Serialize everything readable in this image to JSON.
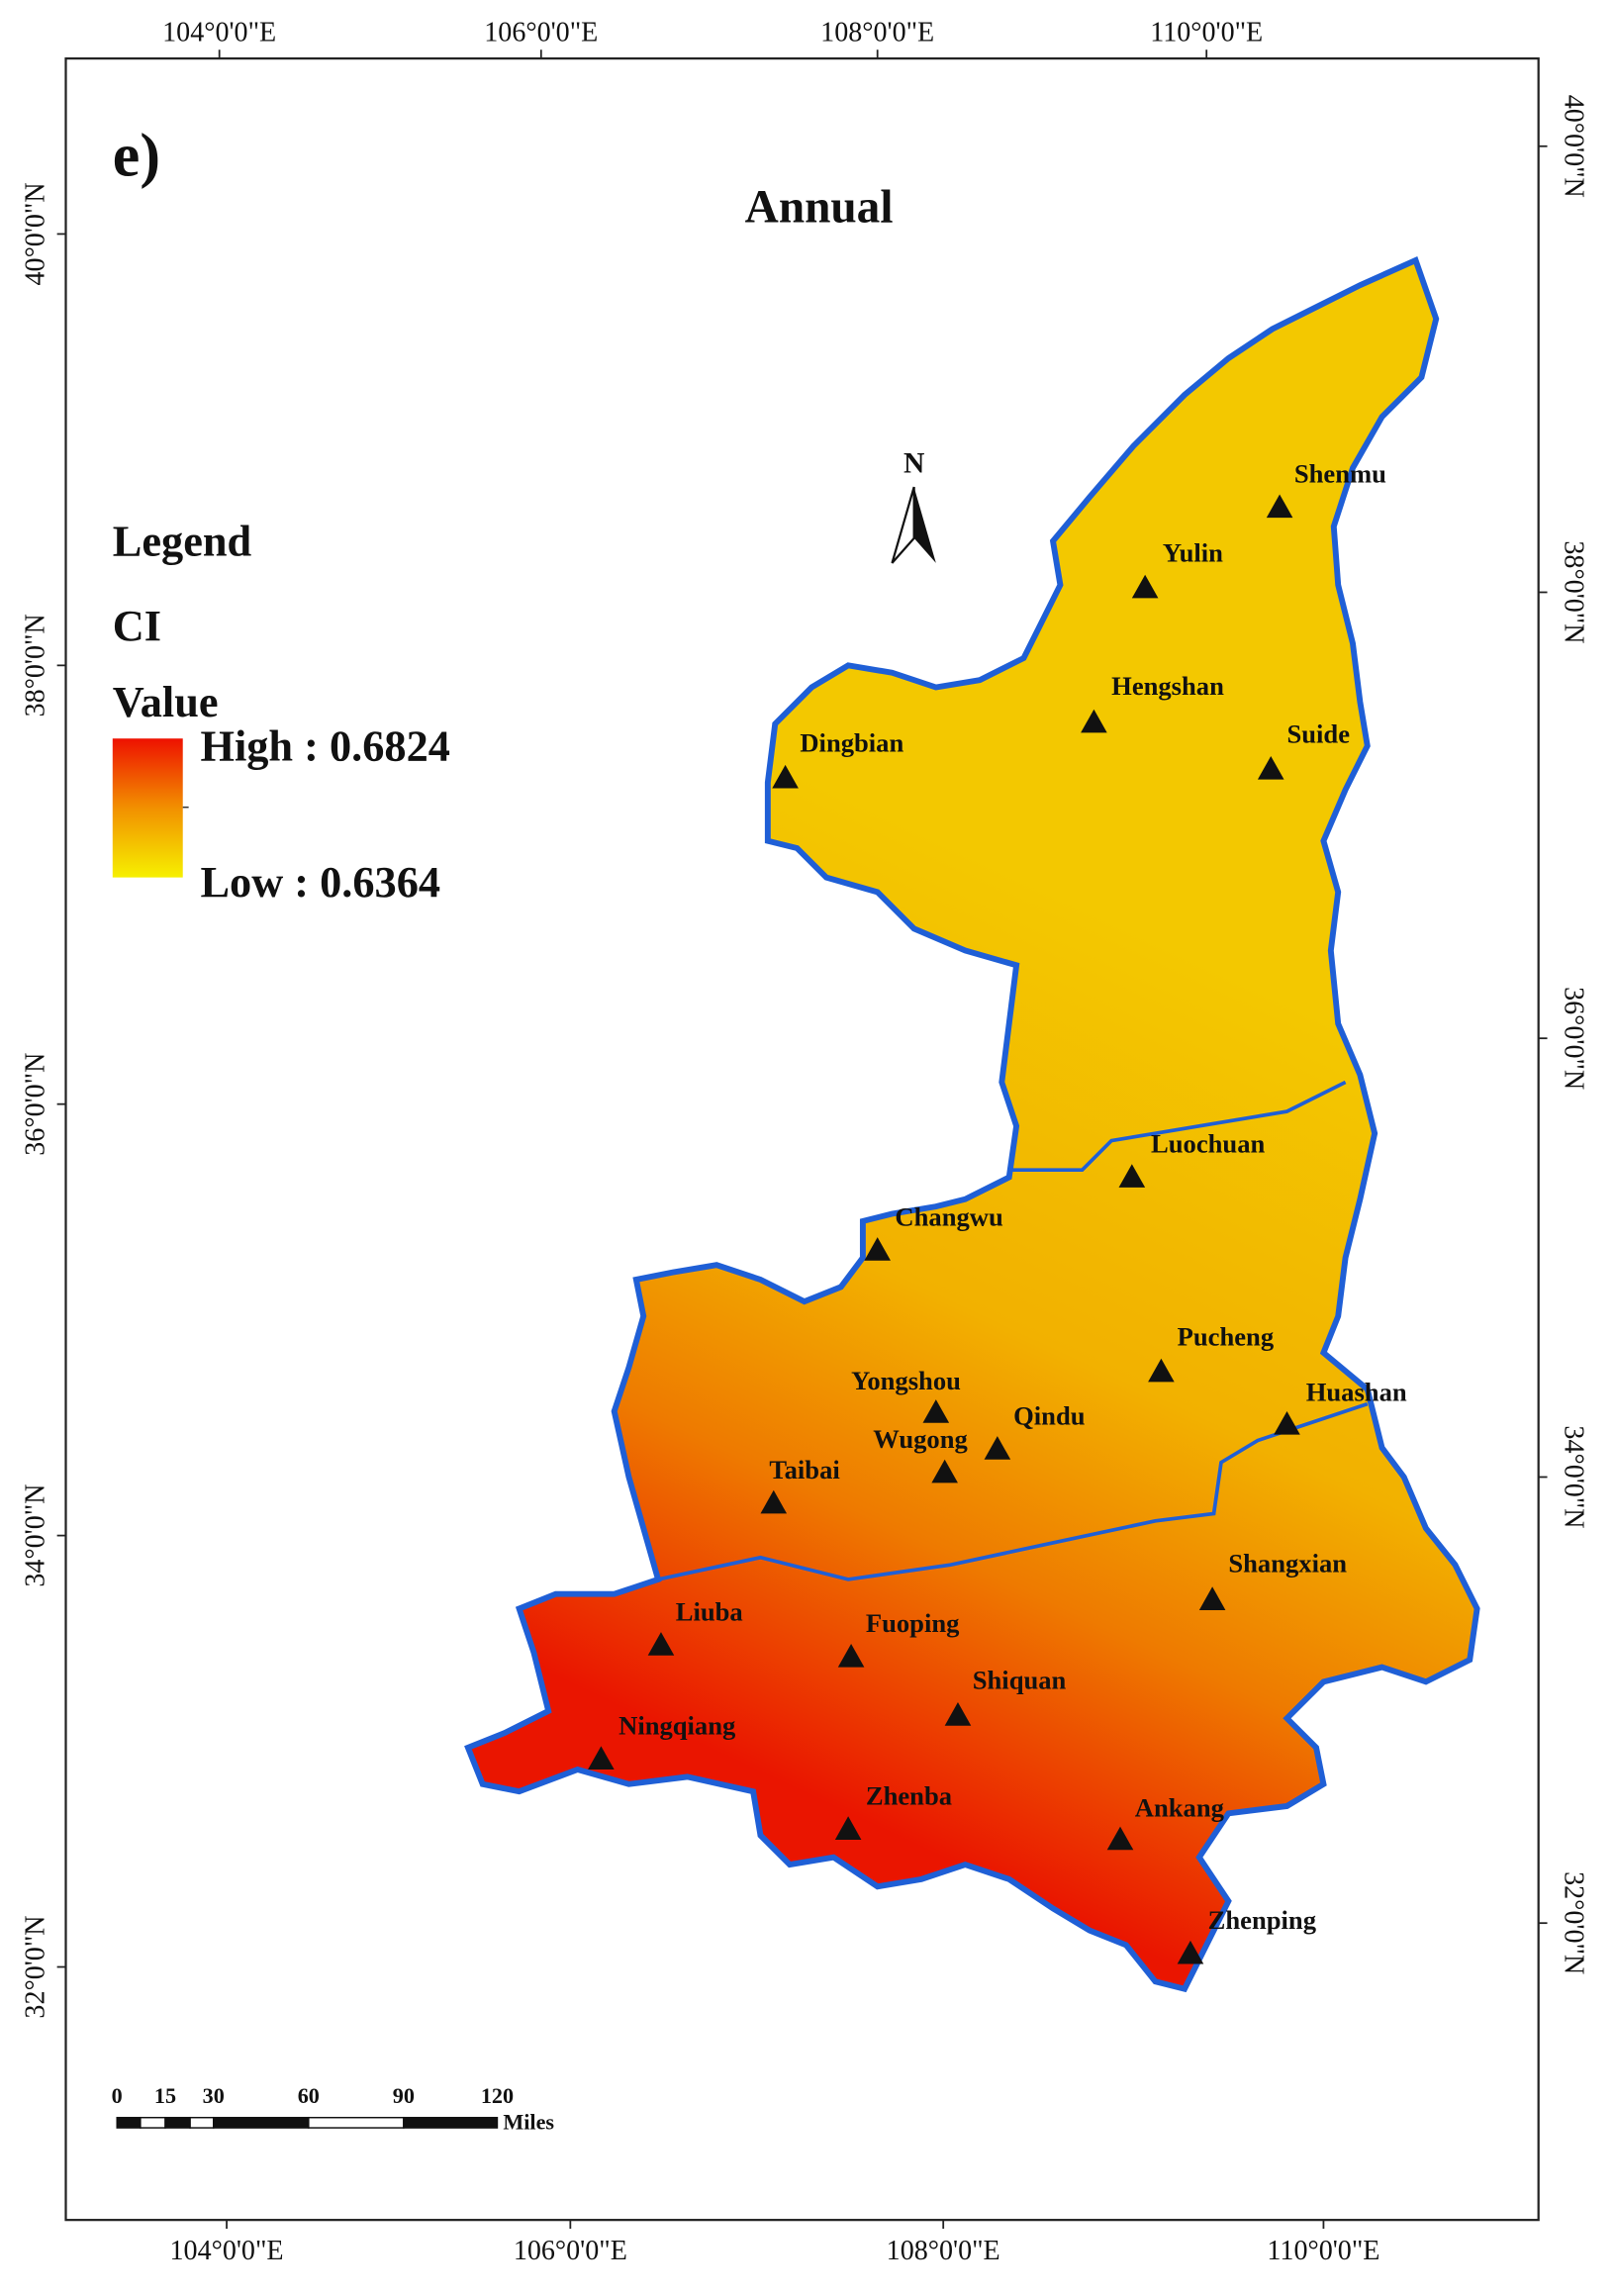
{
  "panel_label": "e)",
  "title": "Annual",
  "legend": {
    "heading": "Legend",
    "layer": "CI",
    "field": "Value",
    "high": "High : 0.6824",
    "low": "Low : 0.6364"
  },
  "north_arrow": "N",
  "graticule": {
    "top": [
      "104°0'0\"E",
      "106°0'0\"E",
      "108°0'0\"E",
      "110°0'0\"E"
    ],
    "bottom": [
      "104°0'0\"E",
      "106°0'0\"E",
      "108°0'0\"E",
      "110°0'0\"E"
    ],
    "left": [
      "40°0'0\"N",
      "38°0'0\"N",
      "36°0'0\"N",
      "34°0'0\"N",
      "32°0'0\"N"
    ],
    "right": [
      "40°0'0\"N",
      "38°0'0\"N",
      "36°0'0\"N",
      "34°0'0\"N",
      "32°0'0\"N"
    ]
  },
  "stations": [
    "Shenmu",
    "Yulin",
    "Hengshan",
    "Suide",
    "Dingbian",
    "Luochuan",
    "Changwu",
    "Pucheng",
    "Yongshou",
    "Huashan",
    "Qindu",
    "Wugong",
    "Taibai",
    "Shangxian",
    "Liuba",
    "Fuoping",
    "Shiquan",
    "Ningqiang",
    "Zhenba",
    "Ankang",
    "Zhenping"
  ],
  "scale_bar": {
    "labels": [
      "0",
      "15",
      "30",
      "60",
      "90",
      "120"
    ],
    "unit": "Miles"
  }
}
